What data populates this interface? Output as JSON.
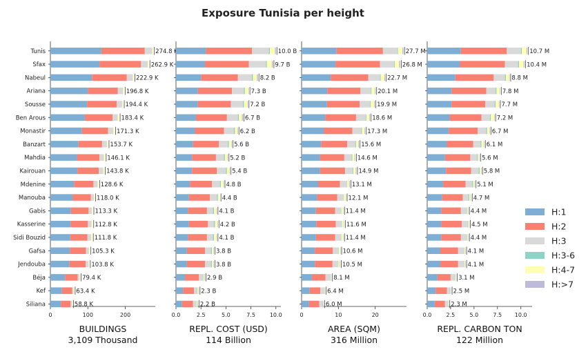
{
  "chart_data": {
    "title": "Exposure Tunisia per height",
    "type": "bar",
    "orientation": "horizontal",
    "stacked": true,
    "categories": [
      "Tunis",
      "Sfax",
      "Nabeul",
      "Ariana",
      "Sousse",
      "Ben Arous",
      "Monastir",
      "Banzart",
      "Mahdia",
      "Kairouan",
      "Mdenine",
      "Manouba",
      "Gabis",
      "Kasserine",
      "Sidi Bouzid",
      "Gafsa",
      "Jendouba",
      "Béja",
      "Kef",
      "Siliana"
    ],
    "legend": {
      "position": "right",
      "entries": [
        {
          "label": "H:1",
          "color": "#7eaed3"
        },
        {
          "label": "H:2",
          "color": "#fa8072"
        },
        {
          "label": "H:3",
          "color": "#d9d9d9"
        },
        {
          "label": "H:3-6",
          "color": "#8dd3c7"
        },
        {
          "label": "H:4-7",
          "color": "#ffffb3"
        },
        {
          "label": "H:>7",
          "color": "#bebada"
        }
      ]
    },
    "panels": [
      {
        "xlabel": "BUILDINGS",
        "sublabel": "3,109 Thousand",
        "xlim": [
          0,
          280
        ],
        "ticks": [
          0,
          100,
          200
        ],
        "tick_labels": [
          "0",
          "100",
          "200"
        ],
        "labels": [
          "274.8 K",
          "262.9 K",
          "222.9 K",
          "196.8 K",
          "194.4 K",
          "183.4 K",
          "171.3 K",
          "153.7 K",
          "146.1 K",
          "143.8 K",
          "128.6 K",
          "118.0 K",
          "113.3 K",
          "112.8 K",
          "111.8 K",
          "105.3 K",
          "103.8 K",
          "79.4 K",
          "63.4 K",
          "58.8 K"
        ],
        "series": [
          {
            "name": "H:1",
            "values": [
              136,
              131,
              111,
              100,
              98,
              92,
              84,
              75,
              71,
              72,
              63,
              59,
              55,
              54,
              53,
              52,
              51,
              39,
              31,
              28
            ]
          },
          {
            "name": "H:2",
            "values": [
              116,
              111,
              93,
              80,
              79,
              74,
              70,
              63,
              60,
              57,
              52,
              49,
              47,
              46,
              46,
              43,
              43,
              34,
              27,
              26
            ]
          },
          {
            "name": "H:3",
            "values": [
              20,
              18,
              16,
              14,
              15,
              14,
              14,
              13,
              12,
              12,
              11,
              8,
              9,
              10,
              10,
              8,
              8,
              5,
              4,
              4
            ]
          },
          {
            "name": "H:3-6",
            "values": [
              0,
              0,
              0,
              0,
              0,
              0,
              0,
              0,
              0,
              0,
              0,
              0,
              0,
              0,
              0,
              0,
              0,
              0,
              0,
              0
            ]
          },
          {
            "name": "H:4-7",
            "values": [
              2.8,
              2.9,
              2.9,
              2.8,
              2.4,
              3.4,
              3.3,
              2.7,
              3.1,
              2.8,
              2.6,
              2.0,
              2.3,
              2.8,
              2.8,
              2.3,
              1.8,
              1.4,
              1.4,
              0.8
            ]
          },
          {
            "name": "H:>7",
            "values": [
              0,
              0,
              0,
              0,
              0,
              0,
              0,
              0,
              0,
              0,
              0,
              0,
              0,
              0,
              0,
              0,
              0,
              0,
              0,
              0
            ]
          }
        ]
      },
      {
        "xlabel": "REPL. COST (USD)",
        "sublabel": "114 Billion",
        "xlim": [
          0,
          10.5
        ],
        "ticks": [
          0,
          2.5,
          5,
          7.5,
          10
        ],
        "tick_labels": [
          "0.0",
          "2.5",
          "5.0",
          "7.5",
          "10.0"
        ],
        "labels": [
          "10.0 B",
          "9.7 B",
          "8.2 B",
          "7.3 B",
          "7.2 B",
          "6.7 B",
          "6.2 B",
          "5.6 B",
          "5.2 B",
          "5.4 B",
          "4.8 B",
          "4.4 B",
          "4.1 B",
          "4.2 B",
          "4.1 B",
          "3.8 B",
          "3.8 B",
          "2.9 B",
          "2.3 B",
          "2.2 B"
        ],
        "series": [
          {
            "name": "H:1",
            "values": [
              3.0,
              2.9,
              2.5,
              2.2,
              2.2,
              2.0,
              1.9,
              1.7,
              1.6,
              1.6,
              1.4,
              1.3,
              1.2,
              1.3,
              1.2,
              1.1,
              1.1,
              0.9,
              0.7,
              0.6
            ]
          },
          {
            "name": "H:2",
            "values": [
              4.6,
              4.4,
              3.7,
              3.4,
              3.3,
              3.1,
              2.9,
              2.6,
              2.4,
              2.5,
              2.2,
              2.1,
              1.9,
              1.9,
              1.9,
              1.8,
              1.8,
              1.4,
              1.1,
              1.1
            ]
          },
          {
            "name": "H:3",
            "values": [
              1.7,
              1.7,
              1.4,
              1.2,
              1.2,
              1.1,
              1.0,
              0.9,
              0.8,
              0.9,
              0.8,
              0.7,
              0.6,
              0.6,
              0.6,
              0.6,
              0.6,
              0.4,
              0.3,
              0.3
            ]
          },
          {
            "name": "H:3-6",
            "values": [
              0.1,
              0.1,
              0.1,
              0.1,
              0.1,
              0.1,
              0.1,
              0.1,
              0.1,
              0.1,
              0.1,
              0.1,
              0.1,
              0.1,
              0.1,
              0.1,
              0.1,
              0.05,
              0.05,
              0.05
            ]
          },
          {
            "name": "H:4-7",
            "values": [
              0.5,
              0.5,
              0.4,
              0.35,
              0.35,
              0.3,
              0.25,
              0.25,
              0.25,
              0.25,
              0.25,
              0.2,
              0.25,
              0.25,
              0.25,
              0.15,
              0.15,
              0.1,
              0.1,
              0.1
            ]
          },
          {
            "name": "H:>7",
            "values": [
              0.1,
              0.1,
              0.1,
              0.05,
              0.05,
              0.1,
              0.05,
              0.05,
              0.05,
              0.05,
              0.05,
              0.0,
              0.05,
              0.05,
              0.05,
              0.05,
              0.05,
              0.05,
              0.05,
              0.05
            ]
          }
        ]
      },
      {
        "xlabel": "AREA (SQM)",
        "sublabel": "316 Million",
        "xlim": [
          0,
          28.5
        ],
        "ticks": [
          0,
          10,
          20
        ],
        "tick_labels": [
          "0",
          "10",
          "20"
        ],
        "labels": [
          "27.7 M",
          "26.8 M",
          "22.7 M",
          "20.1 M",
          "19.9 M",
          "18.6 M",
          "17.3 M",
          "15.6 M",
          "14.6 M",
          "14.9 M",
          "13.1 M",
          "12.1 M",
          "11.4 M",
          "11.6 M",
          "11.4 M",
          "10.6 M",
          "10.5 M",
          "8.1 M",
          "6.4 M",
          "6.0 M"
        ],
        "series": [
          {
            "name": "H:1",
            "values": [
              9.5,
              9.2,
              7.9,
              7.0,
              6.9,
              6.4,
              6.0,
              5.3,
              5.0,
              5.0,
              4.5,
              4.2,
              3.9,
              4.0,
              3.9,
              3.6,
              3.6,
              2.8,
              2.2,
              2.0
            ]
          },
          {
            "name": "H:2",
            "values": [
              12.6,
              12.1,
              10.2,
              9.0,
              8.9,
              8.4,
              7.8,
              7.1,
              6.6,
              6.8,
              5.9,
              5.5,
              5.2,
              5.3,
              5.2,
              4.9,
              4.8,
              3.7,
              2.9,
              2.8
            ]
          },
          {
            "name": "H:3",
            "values": [
              3.9,
              3.8,
              3.2,
              2.8,
              2.8,
              2.6,
              2.4,
              2.2,
              2.0,
              2.1,
              1.9,
              1.7,
              1.6,
              1.6,
              1.6,
              1.5,
              1.5,
              1.2,
              0.9,
              0.9
            ]
          },
          {
            "name": "H:3-6",
            "values": [
              0.2,
              0.2,
              0.2,
              0.2,
              0.2,
              0.2,
              0.2,
              0.2,
              0.2,
              0.2,
              0.1,
              0.1,
              0.1,
              0.1,
              0.1,
              0.1,
              0.1,
              0.1,
              0.1,
              0.1
            ]
          },
          {
            "name": "H:4-7",
            "values": [
              1.2,
              1.2,
              1.0,
              0.9,
              0.9,
              0.8,
              0.7,
              0.6,
              0.6,
              0.6,
              0.5,
              0.5,
              0.5,
              0.5,
              0.5,
              0.4,
              0.4,
              0.2,
              0.2,
              0.1
            ]
          },
          {
            "name": "H:>7",
            "values": [
              0.3,
              0.3,
              0.2,
              0.2,
              0.2,
              0.2,
              0.2,
              0.2,
              0.2,
              0.2,
              0.2,
              0.1,
              0.1,
              0.1,
              0.1,
              0.1,
              0.1,
              0.1,
              0.1,
              0.1
            ]
          }
        ]
      },
      {
        "xlabel": "REPL. CARBON TON",
        "sublabel": "122 Million",
        "xlim": [
          0,
          11.2
        ],
        "ticks": [
          0,
          2.5,
          5,
          7.5,
          10
        ],
        "tick_labels": [
          "0.0",
          "2.5",
          "5.0",
          "7.5",
          "10.0"
        ],
        "labels": [
          "10.7 M",
          "10.4 M",
          "8.8 M",
          "7.8 M",
          "7.7 M",
          "7.2 M",
          "6.7 M",
          "6.1 M",
          "5.6 M",
          "5.8 M",
          "5.1 M",
          "4.7 M",
          "4.4 M",
          "4.5 M",
          "4.4 M",
          "4.1 M",
          "4.1 M",
          "3.1 M",
          "2.5 M",
          "2.3 M"
        ],
        "series": [
          {
            "name": "H:1",
            "values": [
              3.6,
              3.5,
              3.0,
              2.6,
              2.6,
              2.4,
              2.3,
              2.1,
              1.9,
              2.0,
              1.7,
              1.6,
              1.5,
              1.5,
              1.5,
              1.4,
              1.4,
              1.1,
              0.9,
              0.8
            ]
          },
          {
            "name": "H:2",
            "values": [
              4.9,
              4.8,
              4.1,
              3.7,
              3.6,
              3.4,
              3.1,
              2.8,
              2.7,
              2.7,
              2.4,
              2.2,
              2.1,
              2.2,
              2.1,
              1.9,
              1.9,
              1.4,
              1.2,
              1.1
            ]
          },
          {
            "name": "H:3",
            "values": [
              1.5,
              1.4,
              1.2,
              1.0,
              1.0,
              0.9,
              0.9,
              0.8,
              0.7,
              0.8,
              0.7,
              0.6,
              0.6,
              0.6,
              0.6,
              0.6,
              0.6,
              0.4,
              0.3,
              0.3
            ]
          },
          {
            "name": "H:3-6",
            "values": [
              0.1,
              0.1,
              0.1,
              0.1,
              0.1,
              0.1,
              0.1,
              0.1,
              0.1,
              0.1,
              0.1,
              0.1,
              0.05,
              0.05,
              0.05,
              0.05,
              0.05,
              0.05,
              0.05,
              0.05
            ]
          },
          {
            "name": "H:4-7",
            "values": [
              0.5,
              0.5,
              0.35,
              0.35,
              0.35,
              0.35,
              0.25,
              0.25,
              0.15,
              0.15,
              0.15,
              0.15,
              0.1,
              0.1,
              0.1,
              0.1,
              0.1,
              0.1,
              0.05,
              0.05
            ]
          },
          {
            "name": "H:>7",
            "values": [
              0.1,
              0.1,
              0.05,
              0.05,
              0.05,
              0.05,
              0.05,
              0.05,
              0.05,
              0.05,
              0.05,
              0.05,
              0.05,
              0.05,
              0.05,
              0.05,
              0.05,
              0.05,
              0.05,
              0.0
            ]
          }
        ]
      }
    ]
  }
}
